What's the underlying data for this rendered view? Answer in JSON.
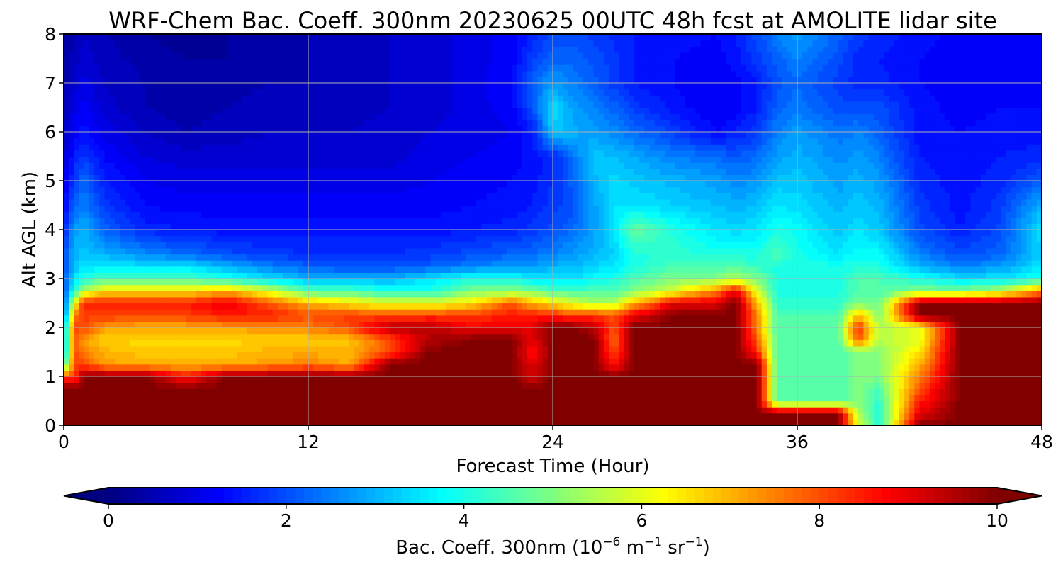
{
  "chart_data": {
    "type": "heatmap",
    "title": "WRF-Chem Bac. Coeff. 300nm  20230625 00UTC 48h fcst at AMOLITE lidar site",
    "xlabel": "Forecast Time (Hour)",
    "ylabel": "Alt AGL (km)",
    "xlim": [
      0,
      48
    ],
    "ylim": [
      0,
      8
    ],
    "x_ticks": [
      0,
      12,
      24,
      36,
      48
    ],
    "y_ticks": [
      0,
      1,
      2,
      3,
      4,
      5,
      6,
      7,
      8
    ],
    "grid": true,
    "colormap": "jet",
    "colorbar": {
      "orientation": "horizontal",
      "extend": "both",
      "vmin": 0,
      "vmax": 10,
      "ticks": [
        0,
        2,
        4,
        6,
        8,
        10
      ],
      "label_main": "Bac. Coeff. 300nm  (10",
      "label_exp1": "−6",
      "label_mid": " m",
      "label_exp2": "−1",
      "label_mid2": " sr",
      "label_exp3": "−1",
      "label_end": ")"
    },
    "x": [
      0,
      0.5,
      1,
      2,
      4,
      6,
      8,
      10,
      12,
      14,
      16,
      18,
      20,
      22,
      23,
      24,
      25,
      26,
      27,
      28,
      30,
      32,
      33,
      34,
      35,
      36,
      38,
      39,
      40,
      42,
      44,
      46,
      48
    ],
    "y": [
      0,
      0.25,
      0.5,
      0.75,
      1,
      1.25,
      1.5,
      1.75,
      2,
      2.25,
      2.5,
      2.75,
      3,
      3.25,
      3.5,
      4,
      4.5,
      5,
      5.5,
      6,
      6.5,
      7,
      7.5,
      8
    ],
    "profiles": [
      [
        10,
        10,
        10,
        10,
        10,
        10,
        10,
        10,
        10,
        10,
        10,
        10,
        10,
        10,
        10,
        10,
        10,
        10,
        10,
        10,
        10,
        10,
        10,
        10,
        10,
        10,
        10,
        6,
        4,
        10,
        10,
        10,
        10
      ],
      [
        10,
        10,
        10,
        10,
        10,
        10,
        10,
        10,
        10,
        10,
        10,
        10,
        10,
        10,
        10,
        10,
        10,
        10,
        10,
        10,
        10,
        10,
        10,
        10,
        10,
        10,
        10,
        5.5,
        4,
        9,
        10,
        10,
        10
      ],
      [
        10,
        10,
        10,
        10,
        10,
        10,
        10,
        10,
        10,
        10,
        10,
        10,
        10,
        10,
        10,
        10,
        10,
        10,
        10,
        10,
        10,
        10,
        10,
        10,
        4.5,
        4.5,
        4.5,
        5,
        4.2,
        8.5,
        10,
        10,
        10
      ],
      [
        10,
        10,
        10,
        10,
        10,
        10,
        10,
        10,
        10,
        10,
        10,
        10,
        10,
        10,
        10,
        10,
        10,
        10,
        10,
        10,
        10,
        10,
        10,
        10,
        4.5,
        4.5,
        4.5,
        5,
        4.5,
        8,
        10,
        10,
        10
      ],
      [
        8,
        8,
        10,
        10,
        10,
        8.5,
        10,
        10,
        10,
        10,
        10,
        10,
        10,
        10,
        9,
        10,
        10,
        10,
        10,
        10,
        10,
        10,
        10,
        10,
        4.5,
        4.5,
        4.5,
        5,
        5,
        7.5,
        10,
        10,
        10
      ],
      [
        4,
        8,
        8,
        7.2,
        7,
        7,
        7,
        7.2,
        7.5,
        7,
        10,
        10,
        10,
        10,
        9,
        10,
        10,
        10,
        8.5,
        10,
        10,
        10,
        10,
        10,
        4.5,
        4.5,
        4.5,
        5,
        5,
        7,
        10,
        10,
        10
      ],
      [
        3,
        8,
        7.5,
        7,
        6.8,
        6.8,
        6.8,
        7,
        7,
        7,
        8,
        10,
        10,
        10,
        8.5,
        10,
        10,
        10,
        8,
        10,
        10,
        10,
        10,
        8.5,
        4.5,
        4.5,
        4.5,
        5,
        5,
        6.5,
        10,
        10,
        10
      ],
      [
        3,
        8,
        7.2,
        6.7,
        6.6,
        6.6,
        6.6,
        6.7,
        6.7,
        6.8,
        8,
        9.5,
        10,
        10,
        9,
        10,
        10,
        10,
        7.5,
        10,
        10,
        10,
        10,
        8,
        4.5,
        4.5,
        4.5,
        8,
        5.5,
        6,
        10,
        10,
        10
      ],
      [
        3,
        8,
        8,
        7.2,
        7,
        7,
        7.2,
        7.3,
        7.5,
        8,
        9.5,
        9.5,
        8.8,
        9,
        9,
        10,
        10,
        9.5,
        8,
        10,
        10,
        10,
        10,
        7.5,
        4.5,
        4.5,
        4.5,
        8.5,
        5.5,
        6,
        10,
        10,
        10
      ],
      [
        2,
        7.5,
        8.2,
        8.2,
        8,
        8.2,
        8.5,
        8.5,
        8,
        8.2,
        8,
        8.2,
        8.2,
        8.5,
        8.5,
        8.5,
        8,
        8.2,
        8,
        9,
        10,
        10,
        10,
        7.5,
        4.5,
        4.5,
        4.5,
        7,
        5,
        10,
        10,
        10,
        10
      ],
      [
        2,
        6,
        8.5,
        8.5,
        8.5,
        8.5,
        9,
        8,
        7,
        6.5,
        6,
        6,
        6.5,
        8,
        7,
        6.5,
        6,
        5.5,
        5.5,
        7,
        9,
        9,
        10,
        7,
        4.2,
        4.2,
        4.2,
        5,
        4.8,
        10,
        10,
        10,
        10
      ],
      [
        2,
        4,
        5.5,
        6.5,
        6.5,
        6.5,
        7,
        6,
        4.5,
        4.5,
        4,
        4,
        5,
        5,
        5,
        4.5,
        4.5,
        4.5,
        4.5,
        5,
        6,
        7.5,
        9,
        6,
        4,
        4,
        4,
        4.5,
        4.5,
        5,
        5,
        5.5,
        7.5
      ],
      [
        2,
        3.5,
        4,
        4.5,
        4.5,
        4.5,
        4,
        3.5,
        3,
        3,
        3,
        3.5,
        4,
        4,
        3.5,
        3.5,
        3.5,
        3.8,
        4,
        4.5,
        5,
        5,
        5.5,
        5,
        4,
        4,
        4,
        4.5,
        4.5,
        4,
        3.5,
        3.5,
        4
      ],
      [
        2,
        3,
        3.5,
        3.5,
        3.5,
        3.5,
        3,
        2.5,
        2.2,
        2,
        2,
        2.2,
        2.5,
        2.8,
        2.8,
        3,
        3,
        3.3,
        3.5,
        4,
        4.5,
        4.5,
        4.5,
        4.3,
        4,
        4,
        4,
        4,
        4,
        3,
        2.5,
        2.8,
        3.5
      ],
      [
        2,
        3,
        3.2,
        3,
        2.6,
        2.3,
        2,
        1.8,
        1.7,
        1.7,
        1.7,
        1.8,
        2,
        2.2,
        2.3,
        2.5,
        2.8,
        3,
        3.3,
        4,
        4.2,
        4,
        4,
        4,
        4.5,
        4,
        3.5,
        3.8,
        3.8,
        2.5,
        2,
        2.2,
        3.3
      ],
      [
        1.5,
        2.8,
        3,
        2.2,
        1.6,
        1.5,
        1.4,
        1.4,
        1.4,
        1.4,
        1.4,
        1.4,
        1.5,
        1.6,
        1.8,
        2,
        2.3,
        2.8,
        3.5,
        4.8,
        4,
        3.5,
        3.4,
        3.5,
        4,
        3.8,
        3.2,
        3.5,
        3.2,
        2,
        1.5,
        2,
        3.5
      ],
      [
        1.2,
        2.2,
        2.5,
        1.8,
        1.3,
        1.2,
        1.2,
        1.2,
        1.2,
        1.2,
        1.2,
        1.2,
        1.3,
        1.4,
        1.5,
        1.8,
        2,
        2.8,
        3.5,
        3.5,
        3.3,
        3.1,
        3,
        3.1,
        3.5,
        3.4,
        3,
        3.2,
        3,
        1.8,
        1.4,
        1.8,
        3
      ],
      [
        1,
        1.8,
        2.3,
        1.5,
        1.1,
        1,
        1,
        1,
        1,
        1,
        1,
        1.1,
        1.2,
        1.3,
        1.4,
        1.7,
        2.2,
        3,
        3.4,
        3.2,
        3,
        2.8,
        2.6,
        2.7,
        3.2,
        3.2,
        2.8,
        3,
        2.8,
        1.6,
        1.4,
        1.6,
        2.2
      ],
      [
        0.8,
        1.5,
        1.8,
        1.3,
        0.9,
        0.8,
        0.8,
        0.8,
        0.8,
        0.8,
        0.8,
        1,
        1.1,
        1.2,
        1.4,
        1.6,
        2.4,
        3.2,
        3.1,
        2.9,
        2.5,
        2.3,
        2.1,
        2.3,
        2.8,
        3,
        2.6,
        2.8,
        2.5,
        1.5,
        1.3,
        1.5,
        1.6
      ],
      [
        0.6,
        1.2,
        1.4,
        1,
        0.7,
        0.5,
        0.6,
        0.7,
        0.7,
        0.7,
        0.8,
        0.9,
        1,
        1.1,
        1.5,
        3.2,
        3,
        2.8,
        2.6,
        2.3,
        1.8,
        1.3,
        1.5,
        1.8,
        2.5,
        2.8,
        2.4,
        2.5,
        2.2,
        1.4,
        1.3,
        1.4,
        1.4
      ],
      [
        0.5,
        1,
        1.2,
        0.8,
        0.5,
        0.4,
        0.5,
        0.6,
        0.6,
        0.6,
        0.7,
        0.8,
        1,
        1.2,
        2,
        3.5,
        2.8,
        2.5,
        2.2,
        1.8,
        1.4,
        1.1,
        1.2,
        1.5,
        2.2,
        2.4,
        2,
        2,
        2,
        1.4,
        1.2,
        1.3,
        1.3
      ],
      [
        0.4,
        0.8,
        1,
        0.7,
        0.5,
        0.4,
        0.4,
        0.5,
        0.5,
        0.6,
        0.7,
        0.8,
        1,
        1.3,
        2.2,
        2.8,
        2.5,
        2.2,
        1.8,
        1.5,
        1.3,
        1.1,
        1.2,
        1.5,
        2,
        2.3,
        1.8,
        1.6,
        1.6,
        1.3,
        1.2,
        1.2,
        1.2
      ],
      [
        0.3,
        0.6,
        0.8,
        0.6,
        0.4,
        0.3,
        0.3,
        0.4,
        0.5,
        0.6,
        0.7,
        0.8,
        1,
        1.2,
        1.8,
        2.2,
        2.2,
        2,
        1.8,
        1.5,
        1.3,
        1.2,
        1.4,
        1.8,
        2.2,
        2.5,
        2,
        1.6,
        1.5,
        1.3,
        1.2,
        1.2,
        1.2
      ],
      [
        0.3,
        0.5,
        0.7,
        0.5,
        0.3,
        0.2,
        0.3,
        0.4,
        0.5,
        0.6,
        0.7,
        0.8,
        1,
        1.2,
        1.6,
        2,
        2,
        1.8,
        1.6,
        1.5,
        1.4,
        1.3,
        1.5,
        2,
        2.5,
        2.8,
        2.2,
        1.8,
        1.6,
        1.4,
        1.2,
        1.2,
        1.2
      ]
    ]
  }
}
